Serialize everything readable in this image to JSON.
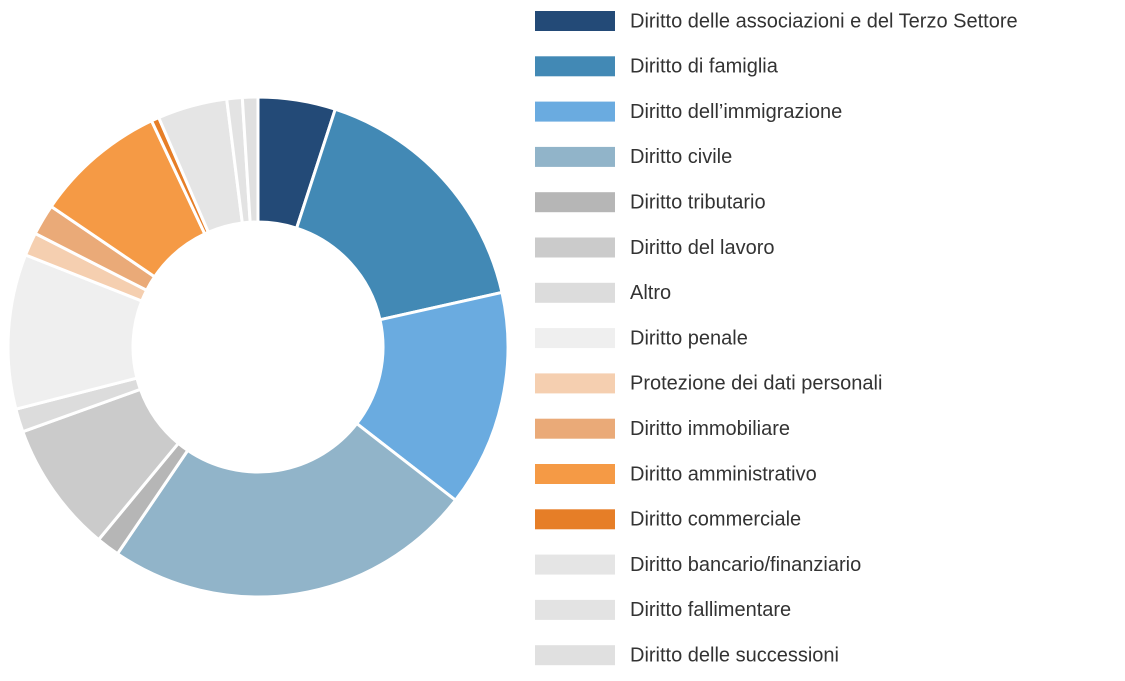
{
  "chart_data": {
    "type": "donut",
    "categories": [
      "Diritto delle associazioni e del Terzo Settore",
      "Diritto di famiglia",
      "Diritto dell’immigrazione",
      "Diritto civile",
      "Diritto tributario",
      "Diritto del lavoro",
      "Altro",
      "Diritto penale",
      "Protezione dei dati personali",
      "Diritto immobiliare",
      "Diritto amministrativo",
      "Diritto commerciale",
      "Diritto bancario/finanziario",
      "Diritto fallimentare",
      "Diritto delle successioni"
    ],
    "values": [
      5,
      16.5,
      14,
      24,
      1.5,
      8.5,
      1.5,
      10,
      1.5,
      2,
      8.5,
      0.5,
      4.5,
      1,
      1
    ],
    "colors": [
      "#234a77",
      "#4289b5",
      "#6aabe0",
      "#91b4c9",
      "#b6b6b6",
      "#cbcbcb",
      "#dcdcdc",
      "#efefef",
      "#f5cfb0",
      "#eaaa78",
      "#f59a45",
      "#e67e27",
      "#e5e5e5",
      "#e3e3e3",
      "#e0e0e0"
    ],
    "legend": "right"
  }
}
